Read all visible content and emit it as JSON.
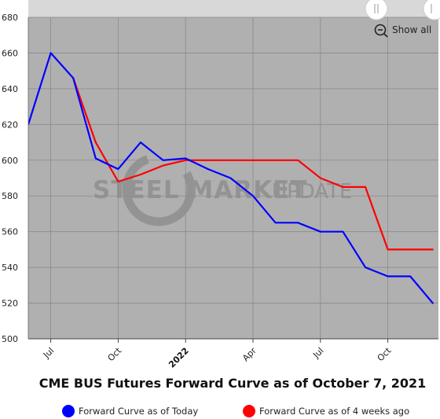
{
  "chart_data": {
    "type": "line",
    "title": "CME BUS Futures Forward Curve as of October 7, 2021",
    "xlabel": "",
    "ylabel": "",
    "ylim": [
      500,
      680
    ],
    "y_ticks": [
      500,
      520,
      540,
      560,
      580,
      600,
      620,
      640,
      660,
      680
    ],
    "x_ticks": [
      {
        "month": "2021-07",
        "label": "Jul",
        "bold": false
      },
      {
        "month": "2021-10",
        "label": "Oct",
        "bold": false
      },
      {
        "month": "2022-01",
        "label": "2022",
        "bold": true
      },
      {
        "month": "2022-04",
        "label": "Apr",
        "bold": false
      },
      {
        "month": "2022-07",
        "label": "Jul",
        "bold": false
      },
      {
        "month": "2022-10",
        "label": "Oct",
        "bold": false
      }
    ],
    "grid": true,
    "legend_position": "bottom",
    "series": [
      {
        "name": "Forward Curve as of Today",
        "color": "#0000ff",
        "points": [
          [
            "2021-06",
            620
          ],
          [
            "2021-07",
            660
          ],
          [
            "2021-08",
            646
          ],
          [
            "2021-09",
            601
          ],
          [
            "2021-10",
            595
          ],
          [
            "2021-11",
            610
          ],
          [
            "2021-12",
            600
          ],
          [
            "2022-01",
            601
          ],
          [
            "2022-02",
            595
          ],
          [
            "2022-03",
            590
          ],
          [
            "2022-04",
            580
          ],
          [
            "2022-05",
            565
          ],
          [
            "2022-06",
            565
          ],
          [
            "2022-07",
            560
          ],
          [
            "2022-08",
            560
          ],
          [
            "2022-09",
            540
          ],
          [
            "2022-10",
            535
          ],
          [
            "2022-11",
            535
          ],
          [
            "2022-12",
            520
          ]
        ]
      },
      {
        "name": "Forward Curve as of 4 weeks ago",
        "color": "#ff0000",
        "points": [
          [
            "2021-08",
            646
          ],
          [
            "2021-09",
            610
          ],
          [
            "2021-10",
            588
          ],
          [
            "2021-11",
            592
          ],
          [
            "2021-12",
            597
          ],
          [
            "2022-01",
            600
          ],
          [
            "2022-02",
            600
          ],
          [
            "2022-03",
            600
          ],
          [
            "2022-04",
            600
          ],
          [
            "2022-05",
            600
          ],
          [
            "2022-06",
            600
          ],
          [
            "2022-07",
            590
          ],
          [
            "2022-08",
            585
          ],
          [
            "2022-09",
            585
          ],
          [
            "2022-10",
            550
          ],
          [
            "2022-11",
            550
          ],
          [
            "2022-12",
            550
          ]
        ]
      }
    ]
  },
  "controls": {
    "show_all_label": "Show all",
    "zoom_icon": "zoom-out-icon",
    "handle_icon": "drag-handle-icon"
  },
  "watermark": {
    "bold_text": "STEEL MARKET",
    "light_text": "UPDATE"
  },
  "colors": {
    "plot_background": "#b0b0b0",
    "navigator_bar": "#d8d8d8"
  }
}
